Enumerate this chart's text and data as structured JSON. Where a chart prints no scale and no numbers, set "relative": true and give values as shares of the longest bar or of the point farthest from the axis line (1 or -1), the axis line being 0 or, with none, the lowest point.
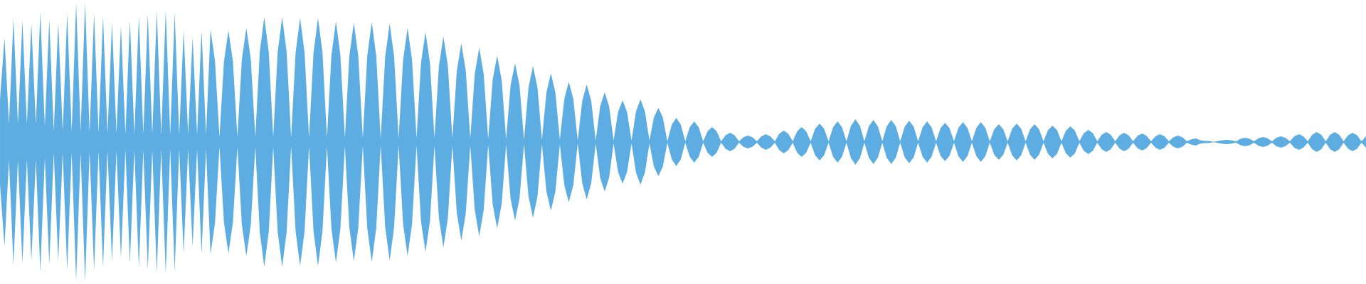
{
  "chart_data": {
    "type": "area",
    "relative": true,
    "categories": [
      null,
      null,
      null,
      null,
      null,
      null,
      null,
      null,
      null,
      null,
      null,
      null,
      null,
      null,
      null,
      null,
      null,
      null,
      null,
      null,
      null,
      null,
      null,
      null,
      null,
      null,
      null,
      null,
      null,
      null,
      null,
      null,
      null,
      null,
      null,
      null,
      null,
      null,
      null,
      null,
      null,
      null,
      null,
      null,
      null,
      null,
      null,
      null,
      null,
      null,
      null,
      null,
      null,
      null,
      null,
      null,
      null,
      null,
      null,
      null,
      null,
      null,
      null,
      null,
      null,
      null,
      null,
      null,
      null,
      null,
      null,
      null,
      null,
      null,
      null,
      null,
      null,
      null,
      null,
      null,
      null,
      null,
      null,
      null,
      null,
      null,
      null,
      null,
      null,
      null,
      null,
      null,
      null,
      null,
      null,
      null,
      null,
      null,
      null,
      null,
      null,
      null,
      null,
      null,
      null,
      null,
      null,
      null,
      null,
      null,
      null,
      null,
      null,
      null,
      null,
      null,
      null,
      null,
      null,
      null,
      null,
      null,
      null,
      null,
      null,
      null,
      null,
      null,
      null,
      null,
      null,
      null,
      null,
      null,
      null,
      null,
      null,
      null,
      null,
      null,
      null,
      null,
      null,
      null,
      null,
      null,
      null,
      null,
      null,
      null,
      null,
      null,
      null,
      null,
      null,
      null,
      null,
      null,
      null,
      null,
      null,
      null,
      null,
      null,
      null,
      null,
      null,
      null,
      null,
      null,
      null,
      null,
      null,
      null,
      null,
      null,
      null,
      null,
      null,
      null,
      null,
      null,
      null,
      null,
      null,
      null,
      null,
      null,
      null,
      null,
      null,
      null,
      null,
      null,
      null,
      null,
      null,
      null,
      null,
      null,
      null,
      null,
      null,
      null,
      null,
      null,
      null,
      null,
      null,
      null,
      null,
      null,
      null,
      null,
      null,
      null,
      null,
      null,
      null,
      null,
      null,
      null,
      null,
      null,
      null,
      null,
      null,
      null,
      null,
      null,
      null,
      null,
      null,
      null,
      null,
      null,
      null,
      null,
      null,
      null,
      null,
      null,
      null,
      null,
      null,
      null,
      null,
      null,
      null,
      null,
      null,
      null,
      null,
      null,
      null,
      null,
      null,
      null,
      null,
      null,
      null,
      null,
      null,
      null,
      null,
      null,
      null,
      null,
      null,
      null,
      null,
      null,
      null,
      null,
      null,
      null,
      null,
      null,
      null,
      null,
      null,
      null,
      null,
      null,
      null,
      null,
      null,
      null,
      null,
      null,
      null,
      null,
      null,
      null,
      null,
      null,
      null,
      null,
      null,
      null,
      null,
      null,
      null,
      null,
      null,
      null
    ],
    "series": [
      {
        "color": "#5dade2",
        "values": [
          0.305,
          0.746,
          0.127,
          0.883,
          0.127,
          0.868,
          0.127,
          0.848,
          0.127,
          0.929,
          0.112,
          0.878,
          0.076,
          0.853,
          0.076,
          0.919,
          0.076,
          0.995,
          0.076,
          1,
          0.066,
          0.919,
          0.066,
          0.898,
          0.061,
          0.853,
          0.061,
          0.832,
          0.056,
          0.868,
          0.056,
          0.898,
          0.056,
          0.914,
          0.056,
          0.939,
          0.051,
          0.944,
          0.051,
          0.924,
          0.051,
          0.797,
          0.051,
          0.751,
          0.051,
          0.797,
          0.051,
          0.802,
          0.58,
          0.036,
          0.576,
          0.797,
          0.576,
          0.036,
          0.591,
          0.817,
          0.591,
          0.036,
          0.644,
          0.893,
          0.644,
          0.036,
          0.644,
          0.893,
          0.643,
          0.03,
          0.639,
          0.888,
          0.639,
          0.03,
          0.639,
          0.888,
          0.639,
          0.03,
          0.621,
          0.863,
          0.621,
          0.03,
          0.614,
          0.853,
          0.613,
          0.025,
          0.616,
          0.858,
          0.616,
          0.025,
          0.609,
          0.848,
          0.609,
          0.025,
          0.587,
          0.817,
          0.587,
          0.025,
          0.566,
          0.787,
          0.566,
          0.025,
          0.544,
          0.756,
          0.544,
          0.025,
          0.509,
          0.706,
          0.509,
          0.025,
          0.487,
          0.675,
          0.485,
          0.02,
          0.445,
          0.619,
          0.445,
          0.02,
          0.406,
          0.563,
          0.404,
          0.015,
          0.39,
          0.543,
          0.39,
          0.015,
          0.354,
          0.492,
          0.354,
          0.015,
          0.31,
          0.431,
          0.309,
          0.01,
          0.295,
          0.411,
          0.295,
          0.01,
          0.255,
          0.355,
          0.255,
          0.01,
          0.215,
          0.299,
          0.215,
          0.01,
          0.219,
          0.305,
          0.219,
          0.01,
          0.176,
          0.244,
          0.175,
          0.005,
          0.124,
          0.173,
          0.124,
          0.005,
          0.106,
          0.147,
          0.106,
          0.005,
          0.077,
          0.107,
          0.077,
          0.005,
          0.048,
          0.066,
          0.048,
          0.005,
          0.034,
          0.046,
          0.034,
          0.005,
          0.041,
          0.056,
          0.041,
          0.005,
          0.059,
          0.081,
          0.059,
          0.005,
          0.077,
          0.107,
          0.077,
          0.005,
          0.095,
          0.132,
          0.095,
          0.005,
          0.106,
          0.147,
          0.106,
          0.005,
          0.116,
          0.162,
          0.116,
          0.005,
          0.113,
          0.157,
          0.113,
          0.005,
          0.113,
          0.157,
          0.113,
          0.005,
          0.109,
          0.152,
          0.109,
          0.005,
          0.106,
          0.147,
          0.106,
          0.005,
          0.099,
          0.137,
          0.099,
          0.005,
          0.102,
          0.142,
          0.102,
          0.005,
          0.102,
          0.142,
          0.102,
          0.005,
          0.092,
          0.127,
          0.092,
          0.005,
          0.095,
          0.132,
          0.095,
          0.005,
          0.092,
          0.127,
          0.092,
          0.005,
          0.085,
          0.117,
          0.085,
          0.005,
          0.081,
          0.112,
          0.081,
          0.005,
          0.063,
          0.086,
          0.063,
          0.005,
          0.052,
          0.071,
          0.052,
          0.005,
          0.048,
          0.066,
          0.048,
          0.005,
          0.045,
          0.061,
          0.045,
          0.005,
          0.041,
          0.056,
          0.041,
          0.005,
          0.034,
          0.046,
          0.034,
          0.005,
          0.019,
          0.025,
          0.012,
          0.008,
          0.008,
          0,
          0.008,
          0.013,
          0.015,
          0.011,
          0.005,
          0.023,
          0.03,
          0.023,
          0.005,
          0.027,
          0.036,
          0.027,
          0.005,
          0.031,
          0.041,
          0.031,
          0.005,
          0.041,
          0.056,
          0.041,
          0.005,
          0.052,
          0.071,
          0.052,
          0.005,
          0.052,
          0.071,
          0.052,
          0.005,
          0.048,
          0.066,
          0.048,
          0.005,
          0.041
        ]
      },
      {
        "color": "#5dade2",
        "values": [
          -0.305,
          -0.746,
          -0.127,
          -0.883,
          -0.127,
          -0.868,
          -0.127,
          -0.848,
          -0.127,
          -0.929,
          -0.112,
          -0.878,
          -0.076,
          -0.853,
          -0.076,
          -0.919,
          -0.076,
          -0.995,
          -0.076,
          -1,
          -0.066,
          -0.919,
          -0.066,
          -0.898,
          -0.061,
          -0.853,
          -0.061,
          -0.832,
          -0.056,
          -0.868,
          -0.056,
          -0.898,
          -0.056,
          -0.914,
          -0.056,
          -0.939,
          -0.051,
          -0.944,
          -0.051,
          -0.924,
          -0.051,
          -0.797,
          -0.051,
          -0.751,
          -0.051,
          -0.797,
          -0.051,
          -0.802,
          -0.58,
          -0.036,
          -0.576,
          -0.797,
          -0.576,
          -0.036,
          -0.591,
          -0.817,
          -0.591,
          -0.036,
          -0.644,
          -0.893,
          -0.644,
          -0.036,
          -0.644,
          -0.893,
          -0.643,
          -0.03,
          -0.639,
          -0.888,
          -0.639,
          -0.03,
          -0.639,
          -0.888,
          -0.639,
          -0.03,
          -0.621,
          -0.863,
          -0.621,
          -0.03,
          -0.614,
          -0.853,
          -0.613,
          -0.025,
          -0.616,
          -0.858,
          -0.616,
          -0.025,
          -0.609,
          -0.848,
          -0.609,
          -0.025,
          -0.587,
          -0.817,
          -0.587,
          -0.025,
          -0.566,
          -0.787,
          -0.566,
          -0.025,
          -0.544,
          -0.756,
          -0.544,
          -0.025,
          -0.509,
          -0.706,
          -0.509,
          -0.025,
          -0.487,
          -0.675,
          -0.485,
          -0.02,
          -0.445,
          -0.619,
          -0.445,
          -0.02,
          -0.406,
          -0.563,
          -0.404,
          -0.015,
          -0.39,
          -0.543,
          -0.39,
          -0.015,
          -0.354,
          -0.492,
          -0.354,
          -0.015,
          -0.31,
          -0.431,
          -0.309,
          -0.01,
          -0.295,
          -0.411,
          -0.295,
          -0.01,
          -0.255,
          -0.355,
          -0.255,
          -0.01,
          -0.215,
          -0.299,
          -0.215,
          -0.01,
          -0.219,
          -0.305,
          -0.219,
          -0.01,
          -0.176,
          -0.244,
          -0.175,
          -0.005,
          -0.124,
          -0.173,
          -0.124,
          -0.005,
          -0.106,
          -0.147,
          -0.106,
          -0.005,
          -0.077,
          -0.107,
          -0.077,
          -0.005,
          -0.048,
          -0.066,
          -0.048,
          -0.005,
          -0.034,
          -0.046,
          -0.034,
          -0.005,
          -0.041,
          -0.056,
          -0.041,
          -0.005,
          -0.059,
          -0.081,
          -0.059,
          -0.005,
          -0.077,
          -0.107,
          -0.077,
          -0.005,
          -0.095,
          -0.132,
          -0.095,
          -0.005,
          -0.106,
          -0.147,
          -0.106,
          -0.005,
          -0.116,
          -0.162,
          -0.116,
          -0.005,
          -0.113,
          -0.157,
          -0.113,
          -0.005,
          -0.113,
          -0.157,
          -0.113,
          -0.005,
          -0.109,
          -0.152,
          -0.109,
          -0.005,
          -0.106,
          -0.147,
          -0.106,
          -0.005,
          -0.099,
          -0.137,
          -0.099,
          -0.005,
          -0.102,
          -0.142,
          -0.102,
          -0.005,
          -0.102,
          -0.142,
          -0.102,
          -0.005,
          -0.092,
          -0.127,
          -0.092,
          -0.005,
          -0.095,
          -0.132,
          -0.095,
          -0.005,
          -0.092,
          -0.127,
          -0.092,
          -0.005,
          -0.085,
          -0.117,
          -0.085,
          -0.005,
          -0.081,
          -0.112,
          -0.081,
          -0.005,
          -0.063,
          -0.086,
          -0.063,
          -0.005,
          -0.052,
          -0.071,
          -0.052,
          -0.005,
          -0.048,
          -0.066,
          -0.048,
          -0.005,
          -0.045,
          -0.061,
          -0.045,
          -0.005,
          -0.041,
          -0.056,
          -0.041,
          -0.005,
          -0.034,
          -0.046,
          -0.034,
          -0.005,
          -0.019,
          -0.025,
          -0.012,
          -0.008,
          -0.008,
          0,
          -0.008,
          -0.013,
          -0.015,
          -0.011,
          -0.005,
          -0.023,
          -0.03,
          -0.023,
          -0.005,
          -0.027,
          -0.036,
          -0.027,
          -0.005,
          -0.031,
          -0.041,
          -0.031,
          -0.005,
          -0.041,
          -0.056,
          -0.041,
          -0.005,
          -0.052,
          -0.071,
          -0.052,
          -0.005,
          -0.052,
          -0.071,
          -0.052,
          -0.005,
          -0.048,
          -0.066,
          -0.048,
          -0.005,
          -0.041
        ]
      }
    ]
  }
}
